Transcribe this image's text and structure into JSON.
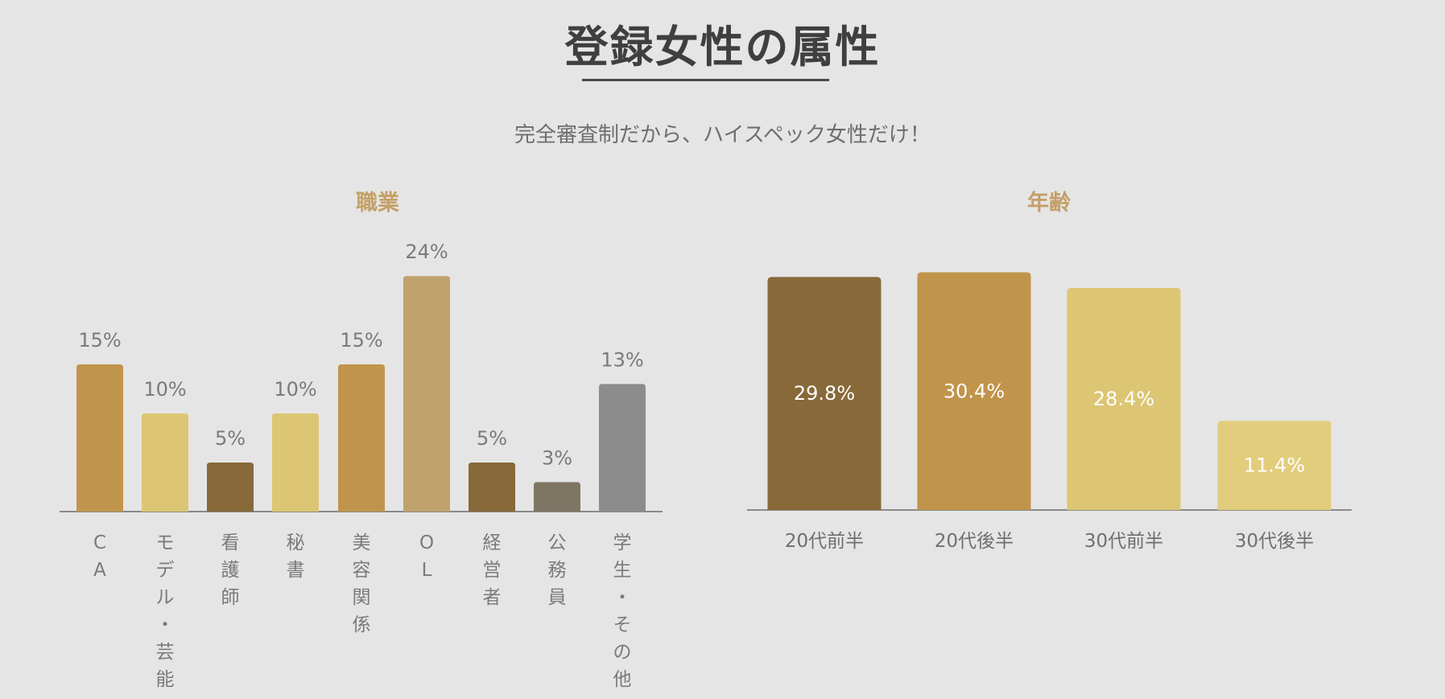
{
  "header": {
    "title": "登録女性の属性",
    "subtitle": "完全審査制だから、ハイスペック女性だけ！"
  },
  "chart_data": [
    {
      "type": "bar",
      "title": "職業",
      "categories": [
        "CA",
        "モデル・芸能",
        "看護師",
        "秘書",
        "美容関係",
        "OL",
        "経営者",
        "公務員",
        "学生・その他"
      ],
      "values": [
        15,
        10,
        5,
        10,
        15,
        24,
        5,
        3,
        13
      ],
      "value_labels": [
        "15%",
        "10%",
        "5%",
        "10%",
        "15%",
        "24%",
        "5%",
        "3%",
        "13%"
      ],
      "colors": [
        "#c1944c",
        "#dcc674",
        "#87693a",
        "#dcc674",
        "#c1944c",
        "#bfa26c",
        "#87693a",
        "#7f7563",
        "#8c8c8c"
      ],
      "unit": "%",
      "category_label_orientation": "vertical",
      "grid": false,
      "legend": "none"
    },
    {
      "type": "bar",
      "title": "年齢",
      "categories": [
        "20代前半",
        "20代後半",
        "30代前半",
        "30代後半"
      ],
      "values": [
        29.8,
        30.4,
        28.4,
        11.4
      ],
      "value_labels": [
        "29.8%",
        "30.4%",
        "28.4%",
        "11.4%"
      ],
      "colors": [
        "#87693a",
        "#c1944c",
        "#dcc674",
        "#e2cd7c"
      ],
      "unit": "%",
      "label_position": "inside",
      "grid": false,
      "legend": "none"
    }
  ]
}
